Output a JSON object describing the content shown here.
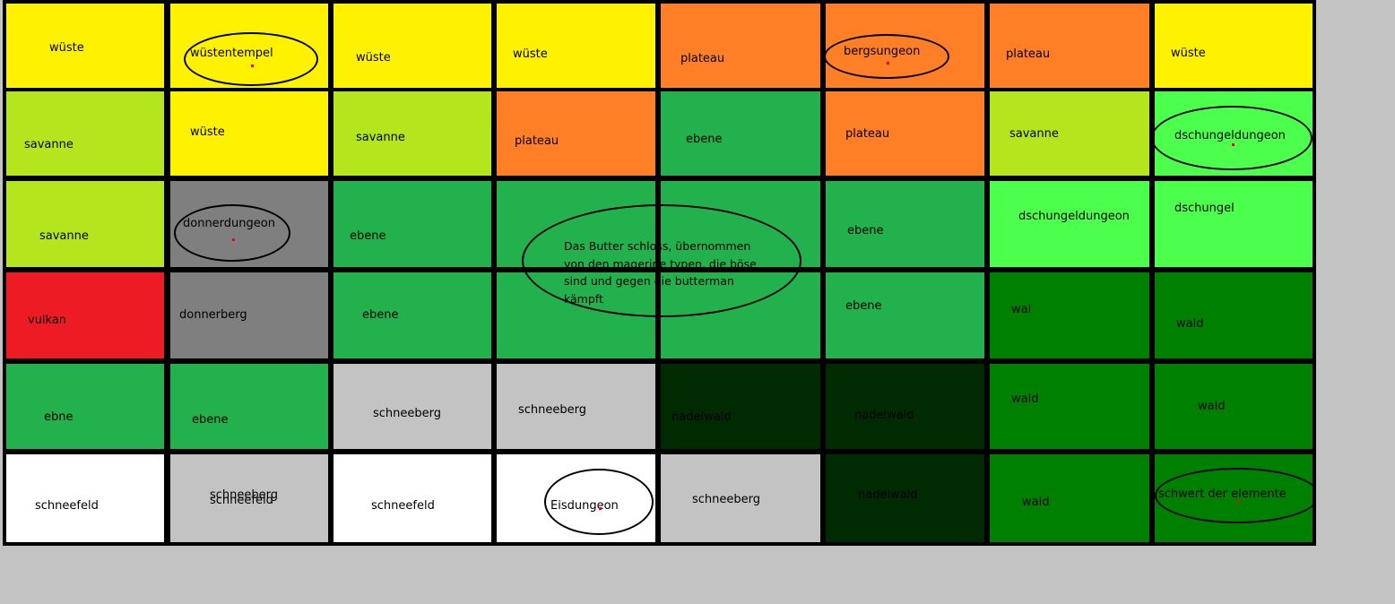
{
  "colors": {
    "background": "#c3c3c3",
    "wueste": "#fff200",
    "plateau": "#ff7f27",
    "savanne": "#b5e61d",
    "ebene": "#22b14c",
    "dschungel": "#4cff4c",
    "wald": "#008000",
    "nadelwald": "#002a00",
    "donner": "#7f7f7f",
    "schneeberg": "#c3c3c3",
    "schneefeld": "#ffffff",
    "vulkan": "#ed1c24"
  },
  "tiles": [
    {
      "label": "wüste",
      "biome": "wueste"
    },
    {
      "label": "wüstentempel",
      "biome": "wueste",
      "circled": true
    },
    {
      "label": "wüste",
      "biome": "wueste"
    },
    {
      "label": "wüste",
      "biome": "wueste"
    },
    {
      "label": "plateau",
      "biome": "plateau"
    },
    {
      "label": "bergsungeon",
      "biome": "plateau",
      "circled": true
    },
    {
      "label": "plateau",
      "biome": "plateau"
    },
    {
      "label": "wüste",
      "biome": "wueste"
    },
    {
      "label": "savanne",
      "biome": "savanne"
    },
    {
      "label": "wüste",
      "biome": "wueste"
    },
    {
      "label": "savanne",
      "biome": "savanne"
    },
    {
      "label": "plateau",
      "biome": "plateau"
    },
    {
      "label": "ebene",
      "biome": "ebene"
    },
    {
      "label": "plateau",
      "biome": "plateau"
    },
    {
      "label": "savanne",
      "biome": "savanne"
    },
    {
      "label": "dschungeldungeon",
      "biome": "dschungel",
      "circled": true
    },
    {
      "label": "savanne",
      "biome": "savanne"
    },
    {
      "label": "donnerdungeon",
      "biome": "donner",
      "circled": true
    },
    {
      "label": "ebene",
      "biome": "ebene"
    },
    {
      "label": "",
      "biome": "ebene"
    },
    {
      "label": "",
      "biome": "ebene"
    },
    {
      "label": "ebene",
      "biome": "ebene"
    },
    {
      "label": "dschungeldungeon",
      "biome": "dschungel"
    },
    {
      "label": "dschungel",
      "biome": "dschungel"
    },
    {
      "label": "vulkan",
      "biome": "vulkan"
    },
    {
      "label": "donnerberg",
      "biome": "donner"
    },
    {
      "label": "ebene",
      "biome": "ebene"
    },
    {
      "label": "",
      "biome": "ebene"
    },
    {
      "label": "",
      "biome": "ebene"
    },
    {
      "label": "ebene",
      "biome": "ebene"
    },
    {
      "label": "wal",
      "biome": "wald"
    },
    {
      "label": "wald",
      "biome": "wald"
    },
    {
      "label": "ebne",
      "biome": "ebene"
    },
    {
      "label": "ebene",
      "biome": "ebene"
    },
    {
      "label": "schneeberg",
      "biome": "schneeberg"
    },
    {
      "label": "schneeberg",
      "biome": "schneeberg"
    },
    {
      "label": "nadelwald",
      "biome": "nadelwald"
    },
    {
      "label": "nadelwald",
      "biome": "nadelwald"
    },
    {
      "label": "wald",
      "biome": "wald"
    },
    {
      "label": "wald",
      "biome": "wald"
    },
    {
      "label": "schneefeld",
      "biome": "schneefeld"
    },
    {
      "label": "schneeberg",
      "biome": "schneeberg",
      "overlay": "schneefeld"
    },
    {
      "label": "schneefeld",
      "biome": "schneefeld"
    },
    {
      "label": "Eisdungeon",
      "biome": "schneefeld",
      "circled": true
    },
    {
      "label": "schneeberg",
      "biome": "schneeberg"
    },
    {
      "label": "nadelwald",
      "biome": "nadelwald"
    },
    {
      "label": "wald",
      "biome": "wald"
    },
    {
      "label": "schwert der elemente",
      "biome": "wald",
      "circled": true
    }
  ],
  "note": {
    "lines": [
      "Das Butter schloss, übernommen",
      "von den magerine typen, die böse",
      "sind und gegen die butterman",
      "kämpft"
    ]
  }
}
